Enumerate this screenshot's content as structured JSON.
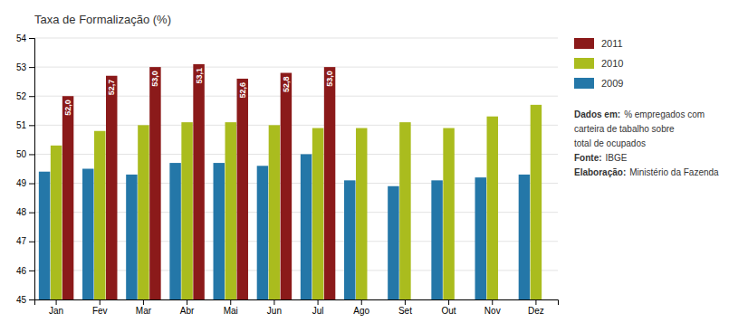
{
  "chart_data": {
    "type": "bar",
    "title": "Taxa de Formalização (%)",
    "categories": [
      "Jan",
      "Fev",
      "Mar",
      "Abr",
      "Mai",
      "Jun",
      "Jul",
      "Ago",
      "Set",
      "Out",
      "Nov",
      "Dez"
    ],
    "series": [
      {
        "name": "2009",
        "color": "#2477A8",
        "values": [
          49.4,
          49.5,
          49.3,
          49.7,
          49.7,
          49.6,
          50.0,
          49.1,
          48.9,
          49.1,
          49.2,
          49.3
        ]
      },
      {
        "name": "2010",
        "color": "#AABC1E",
        "values": [
          50.3,
          50.8,
          51.0,
          51.1,
          51.1,
          51.0,
          50.9,
          50.9,
          51.1,
          50.9,
          51.3,
          51.7
        ]
      },
      {
        "name": "2011",
        "color": "#8B1A1A",
        "values": [
          52.0,
          52.7,
          53.0,
          53.1,
          52.6,
          52.8,
          53.0,
          null,
          null,
          null,
          null,
          null
        ],
        "data_labels": true,
        "value_labels": [
          "52,0",
          "52,7",
          "53,0",
          "53,1",
          "52,6",
          "52,8",
          "53,0",
          null,
          null,
          null,
          null,
          null
        ]
      }
    ],
    "ylim": [
      45,
      54
    ],
    "yticks": [
      45,
      46,
      47,
      48,
      49,
      50,
      51,
      52,
      53,
      54
    ],
    "grid": true,
    "annotations": [
      [
        "Dados em:",
        "% empregados com"
      ],
      [
        "carteira de tabalho sobre"
      ],
      [
        "total de ocupados"
      ],
      [
        "Fonte:",
        "IBGE"
      ],
      [
        "Elaboração:",
        "Ministério da Fazenda"
      ]
    ]
  }
}
